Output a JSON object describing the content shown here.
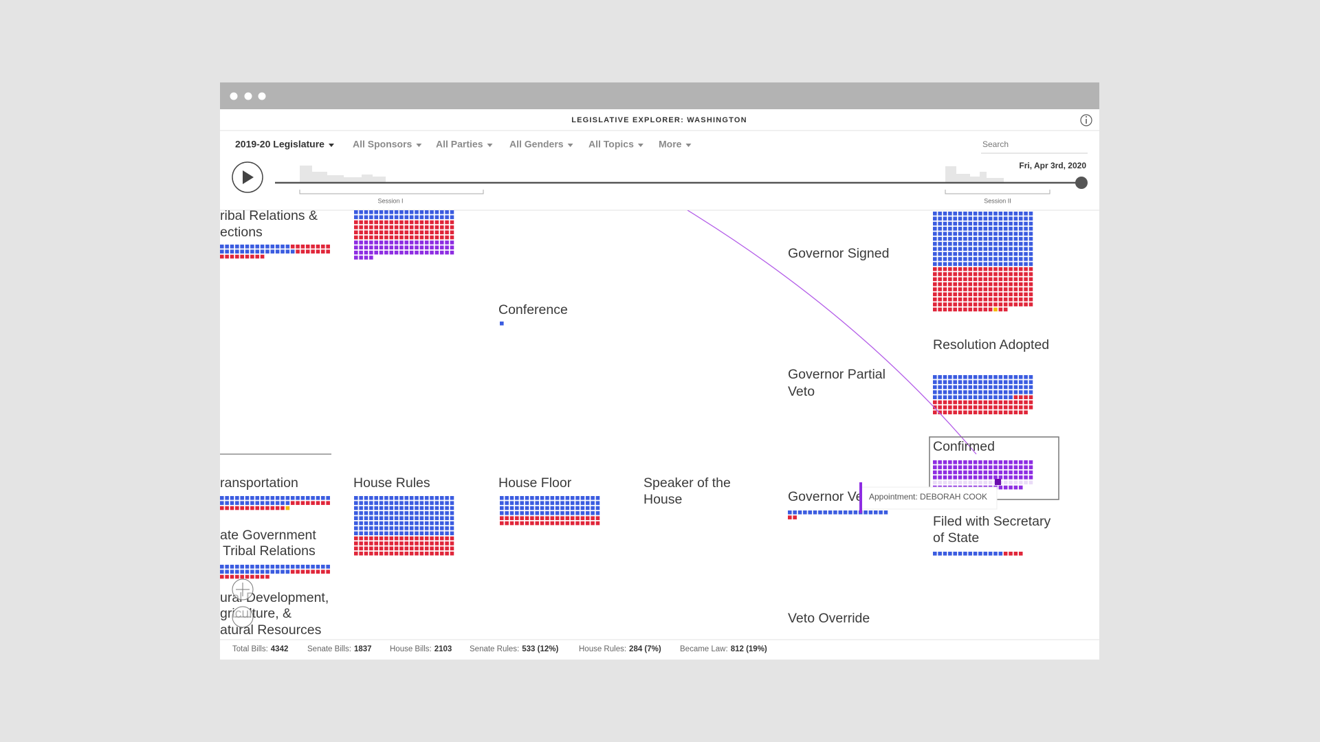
{
  "header": {
    "title": "LEGISLATIVE EXPLORER: WASHINGTON"
  },
  "filters": [
    "2019-20 Legislature",
    "All Sponsors",
    "All Parties",
    "All Genders",
    "All Topics",
    "More"
  ],
  "search": "Search",
  "timeline": {
    "date": "Fri, Apr 3rd, 2020",
    "sessions": [
      "Session I",
      "Session II"
    ]
  },
  "stages": [
    {
      "lines": [
        "ribal Relations &",
        "ections"
      ]
    },
    {
      "lines": [
        "Conference"
      ]
    },
    {
      "lines": [
        "Governor Signed"
      ]
    },
    {
      "lines": [
        "Resolution Adopted"
      ]
    },
    {
      "lines": [
        "Governor Partial",
        "Veto"
      ]
    },
    {
      "lines": [
        "Confirmed"
      ]
    },
    {
      "lines": [
        "ransportation"
      ]
    },
    {
      "lines": [
        "House Rules"
      ]
    },
    {
      "lines": [
        "House Floor"
      ]
    },
    {
      "lines": [
        "Speaker of the",
        "House"
      ]
    },
    {
      "lines": [
        "Governor Ve"
      ]
    },
    {
      "lines": [
        "Filed with Secretary",
        "of State"
      ]
    },
    {
      "lines": [
        "ate Government",
        "Tribal Relations"
      ]
    },
    {
      "lines": [
        "ural Development,",
        "griculture, &",
        "atural Resources"
      ]
    },
    {
      "lines": [
        "Veto Override"
      ]
    }
  ],
  "tooltip": "Appointment: DEBORAH COOK",
  "footer": [
    {
      "label": "Total Bills:",
      "value": "4342"
    },
    {
      "label": "Senate Bills:",
      "value": "1837"
    },
    {
      "label": "House Bills:",
      "value": "2103"
    },
    {
      "label": "Senate Rules:",
      "value": "533 (12%)"
    },
    {
      "label": "House Rules:",
      "value": "284 (7%)"
    },
    {
      "label": "Became Law:",
      "value": "812 (19%)"
    }
  ]
}
